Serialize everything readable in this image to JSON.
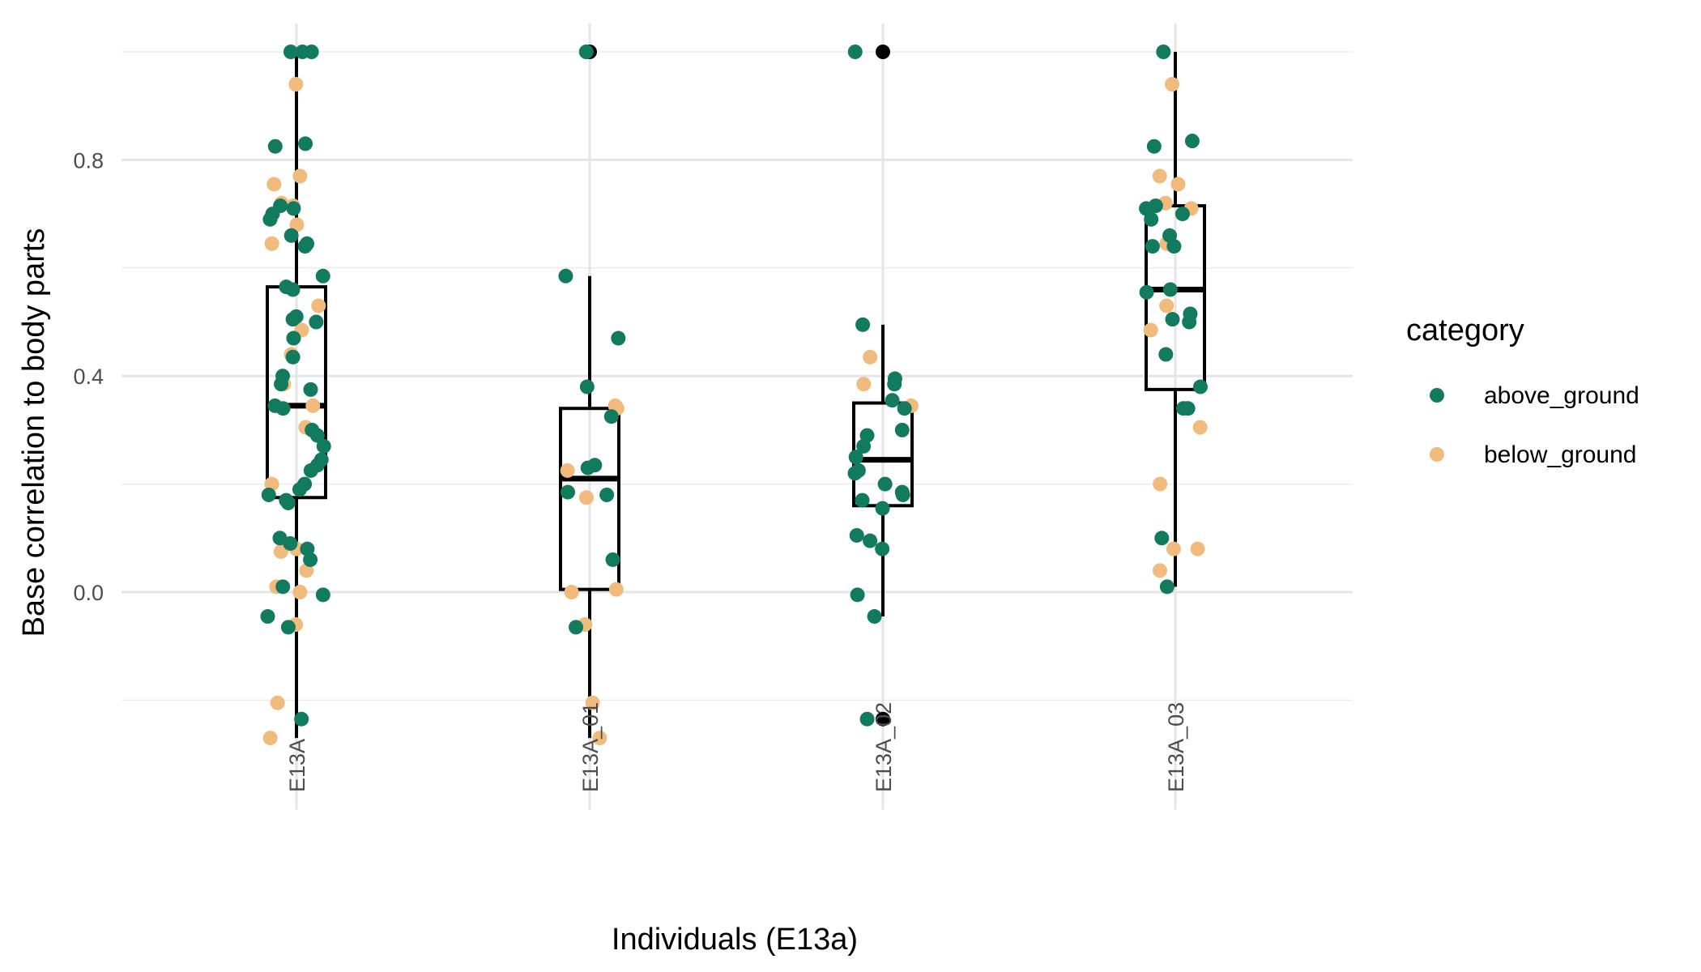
{
  "chart_data": {
    "type": "boxplot-jitter",
    "title": "",
    "xlabel": "Individuals (E13a)",
    "ylabel": "Base correlation to body parts",
    "ylim": [
      -0.32,
      1.0
    ],
    "y_ticks": [
      0.0,
      0.4,
      0.8
    ],
    "y_tick_labels": [
      "0.0",
      "0.4",
      "0.8"
    ],
    "categories": [
      "E13A",
      "E13A_01",
      "E13A_02",
      "E13A_03"
    ],
    "grid": true,
    "legend": {
      "title": "category",
      "position": "right",
      "entries": [
        {
          "name": "above_ground",
          "color": "#117a5f"
        },
        {
          "name": "below_ground",
          "color": "#f0bb7c"
        }
      ]
    },
    "boxes": [
      {
        "category": "E13A",
        "whisker_low": -0.27,
        "q1": 0.175,
        "median": 0.345,
        "q3": 0.565,
        "whisker_high": 1.0,
        "outliers": []
      },
      {
        "category": "E13A_01",
        "whisker_low": -0.27,
        "q1": 0.005,
        "median": 0.21,
        "q3": 0.34,
        "whisker_high": 0.585,
        "outliers": [
          1.0
        ]
      },
      {
        "category": "E13A_02",
        "whisker_low": -0.045,
        "q1": 0.16,
        "median": 0.245,
        "q3": 0.35,
        "whisker_high": 0.495,
        "outliers": [
          1.0,
          -0.235
        ]
      },
      {
        "category": "E13A_03",
        "whisker_low": 0.01,
        "q1": 0.375,
        "median": 0.56,
        "q3": 0.715,
        "whisker_high": 1.0,
        "outliers": []
      }
    ],
    "series": [
      {
        "name": "above_ground",
        "points": [
          [
            "E13A",
            1.0
          ],
          [
            "E13A",
            1.0
          ],
          [
            "E13A",
            1.0
          ],
          [
            "E13A",
            0.83
          ],
          [
            "E13A",
            0.825
          ],
          [
            "E13A",
            0.715
          ],
          [
            "E13A",
            0.71
          ],
          [
            "E13A",
            0.7
          ],
          [
            "E13A",
            0.69
          ],
          [
            "E13A",
            0.66
          ],
          [
            "E13A",
            0.645
          ],
          [
            "E13A",
            0.64
          ],
          [
            "E13A",
            0.585
          ],
          [
            "E13A",
            0.565
          ],
          [
            "E13A",
            0.56
          ],
          [
            "E13A",
            0.51
          ],
          [
            "E13A",
            0.505
          ],
          [
            "E13A",
            0.5
          ],
          [
            "E13A",
            0.47
          ],
          [
            "E13A",
            0.435
          ],
          [
            "E13A",
            0.4
          ],
          [
            "E13A",
            0.385
          ],
          [
            "E13A",
            0.375
          ],
          [
            "E13A",
            0.345
          ],
          [
            "E13A",
            0.34
          ],
          [
            "E13A",
            0.3
          ],
          [
            "E13A",
            0.29
          ],
          [
            "E13A",
            0.27
          ],
          [
            "E13A",
            0.245
          ],
          [
            "E13A",
            0.235
          ],
          [
            "E13A",
            0.225
          ],
          [
            "E13A",
            0.2
          ],
          [
            "E13A",
            0.19
          ],
          [
            "E13A",
            0.18
          ],
          [
            "E13A",
            0.17
          ],
          [
            "E13A",
            0.165
          ],
          [
            "E13A",
            0.1
          ],
          [
            "E13A",
            0.09
          ],
          [
            "E13A",
            0.08
          ],
          [
            "E13A",
            0.06
          ],
          [
            "E13A",
            0.01
          ],
          [
            "E13A",
            -0.005
          ],
          [
            "E13A",
            -0.045
          ],
          [
            "E13A",
            -0.065
          ],
          [
            "E13A",
            -0.235
          ],
          [
            "E13A_01",
            1.0
          ],
          [
            "E13A_01",
            0.585
          ],
          [
            "E13A_01",
            0.47
          ],
          [
            "E13A_01",
            0.38
          ],
          [
            "E13A_01",
            0.325
          ],
          [
            "E13A_01",
            0.235
          ],
          [
            "E13A_01",
            0.23
          ],
          [
            "E13A_01",
            0.185
          ],
          [
            "E13A_01",
            0.18
          ],
          [
            "E13A_01",
            0.06
          ],
          [
            "E13A_01",
            -0.065
          ],
          [
            "E13A_02",
            1.0
          ],
          [
            "E13A_02",
            0.495
          ],
          [
            "E13A_02",
            0.395
          ],
          [
            "E13A_02",
            0.385
          ],
          [
            "E13A_02",
            0.355
          ],
          [
            "E13A_02",
            0.34
          ],
          [
            "E13A_02",
            0.29
          ],
          [
            "E13A_02",
            0.3
          ],
          [
            "E13A_02",
            0.27
          ],
          [
            "E13A_02",
            0.25
          ],
          [
            "E13A_02",
            0.225
          ],
          [
            "E13A_02",
            0.22
          ],
          [
            "E13A_02",
            0.2
          ],
          [
            "E13A_02",
            0.185
          ],
          [
            "E13A_02",
            0.18
          ],
          [
            "E13A_02",
            0.17
          ],
          [
            "E13A_02",
            0.155
          ],
          [
            "E13A_02",
            0.105
          ],
          [
            "E13A_02",
            0.095
          ],
          [
            "E13A_02",
            0.08
          ],
          [
            "E13A_02",
            -0.005
          ],
          [
            "E13A_02",
            -0.045
          ],
          [
            "E13A_02",
            -0.235
          ],
          [
            "E13A_03",
            1.0
          ],
          [
            "E13A_03",
            0.835
          ],
          [
            "E13A_03",
            0.825
          ],
          [
            "E13A_03",
            0.715
          ],
          [
            "E13A_03",
            0.71
          ],
          [
            "E13A_03",
            0.7
          ],
          [
            "E13A_03",
            0.69
          ],
          [
            "E13A_03",
            0.66
          ],
          [
            "E13A_03",
            0.64
          ],
          [
            "E13A_03",
            0.64
          ],
          [
            "E13A_03",
            0.56
          ],
          [
            "E13A_03",
            0.555
          ],
          [
            "E13A_03",
            0.515
          ],
          [
            "E13A_03",
            0.505
          ],
          [
            "E13A_03",
            0.5
          ],
          [
            "E13A_03",
            0.44
          ],
          [
            "E13A_03",
            0.38
          ],
          [
            "E13A_03",
            0.34
          ],
          [
            "E13A_03",
            0.34
          ],
          [
            "E13A_03",
            0.1
          ],
          [
            "E13A_03",
            0.01
          ]
        ]
      },
      {
        "name": "below_ground",
        "points": [
          [
            "E13A",
            0.94
          ],
          [
            "E13A",
            0.77
          ],
          [
            "E13A",
            0.755
          ],
          [
            "E13A",
            0.72
          ],
          [
            "E13A",
            0.715
          ],
          [
            "E13A",
            0.68
          ],
          [
            "E13A",
            0.645
          ],
          [
            "E13A",
            0.53
          ],
          [
            "E13A",
            0.485
          ],
          [
            "E13A",
            0.44
          ],
          [
            "E13A",
            0.385
          ],
          [
            "E13A",
            0.345
          ],
          [
            "E13A",
            0.305
          ],
          [
            "E13A",
            0.2
          ],
          [
            "E13A",
            0.08
          ],
          [
            "E13A",
            0.075
          ],
          [
            "E13A",
            0.04
          ],
          [
            "E13A",
            0.01
          ],
          [
            "E13A",
            0.0
          ],
          [
            "E13A",
            -0.06
          ],
          [
            "E13A",
            -0.205
          ],
          [
            "E13A",
            -0.27
          ],
          [
            "E13A_01",
            0.345
          ],
          [
            "E13A_01",
            0.34
          ],
          [
            "E13A_01",
            0.225
          ],
          [
            "E13A_01",
            0.175
          ],
          [
            "E13A_01",
            0.005
          ],
          [
            "E13A_01",
            0.0
          ],
          [
            "E13A_01",
            -0.06
          ],
          [
            "E13A_01",
            -0.205
          ],
          [
            "E13A_01",
            -0.27
          ],
          [
            "E13A_02",
            0.435
          ],
          [
            "E13A_02",
            0.385
          ],
          [
            "E13A_02",
            0.345
          ],
          [
            "E13A_03",
            0.94
          ],
          [
            "E13A_03",
            0.77
          ],
          [
            "E13A_03",
            0.755
          ],
          [
            "E13A_03",
            0.72
          ],
          [
            "E13A_03",
            0.715
          ],
          [
            "E13A_03",
            0.71
          ],
          [
            "E13A_03",
            0.645
          ],
          [
            "E13A_03",
            0.53
          ],
          [
            "E13A_03",
            0.485
          ],
          [
            "E13A_03",
            0.305
          ],
          [
            "E13A_03",
            0.2
          ],
          [
            "E13A_03",
            0.08
          ],
          [
            "E13A_03",
            0.08
          ],
          [
            "E13A_03",
            0.04
          ]
        ]
      }
    ]
  }
}
